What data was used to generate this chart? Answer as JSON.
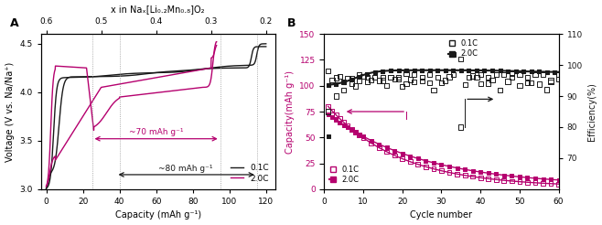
{
  "panel_A": {
    "title_top": "x in Naₓ[Li₀.₂Mn₀.₈]O₂",
    "xlabel": "Capacity (mAh g⁻¹)",
    "ylabel": "Voltage (V vs. Na/Na⁺)",
    "xlim": [
      -3,
      125
    ],
    "ylim": [
      3.0,
      4.6
    ],
    "xticks": [
      0,
      20,
      40,
      60,
      80,
      100,
      120
    ],
    "yticks": [
      3.0,
      3.5,
      4.0,
      4.5
    ],
    "color_01C": "#1a1a1a",
    "color_20C": "#b5006e",
    "annotation_70": "~70 mAh g⁻¹",
    "annotation_80": "~80 mAh g⁻¹"
  },
  "panel_B": {
    "xlabel": "Cycle number",
    "ylabel_left": "Capacity(mAh g⁻¹)",
    "ylabel_right": "Efficiency(%)",
    "xlim": [
      0,
      60
    ],
    "ylim_left": [
      0,
      150
    ],
    "ylim_right": [
      60,
      110
    ],
    "xticks": [
      0,
      10,
      20,
      30,
      40,
      50,
      60
    ],
    "yticks_left": [
      0,
      25,
      50,
      75,
      100,
      125,
      150
    ],
    "yticks_right": [
      70,
      80,
      90,
      100,
      110
    ],
    "color_black": "#1a1a1a",
    "color_pink": "#b5006e"
  }
}
